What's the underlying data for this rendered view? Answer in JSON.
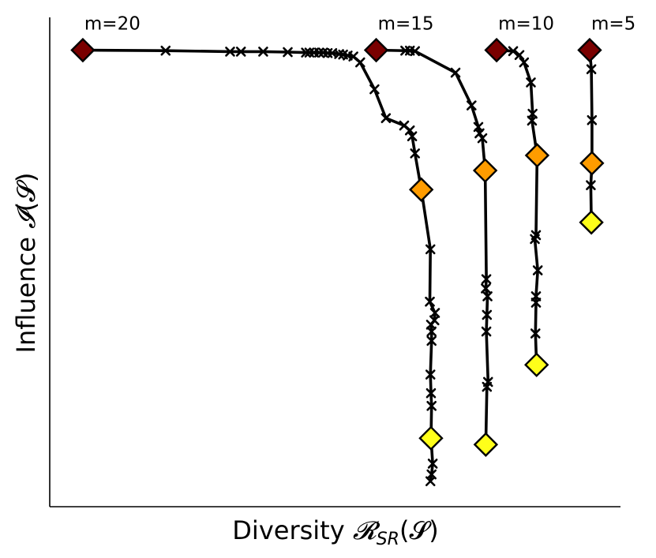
{
  "chart_data": {
    "type": "line",
    "title": "",
    "xlabel": "Diversity 𝓡SR(𝓢)",
    "ylabel": "Influence 𝓘(𝓢)",
    "xlabel_text": {
      "prefix": "Diversity ",
      "symbol": "𝓡",
      "subscript": "SR",
      "suffix": "(𝓢)"
    },
    "ylabel_text": {
      "prefix": "Influence ",
      "symbol": "𝓘",
      "suffix": "(𝓢)"
    },
    "xlim": [
      0,
      100
    ],
    "ylim": [
      0,
      100
    ],
    "grid": false,
    "ticks_shown": false,
    "colors": {
      "start_marker": "#7a0000",
      "mid_marker": "#ff9c00",
      "end_marker": "#ffff1a",
      "line": "#000000"
    },
    "series": [
      {
        "name": "m=20",
        "x": [
          5.8,
          20.3,
          31.6,
          33.5,
          37.4,
          41.7,
          44.9,
          45.5,
          46.3,
          47.2,
          47.9,
          48.7,
          49.5,
          50.7,
          51.4,
          52.2,
          53.2,
          54.4,
          56.9,
          58.9,
          62.1,
          63.1,
          63.5,
          64.0,
          65.1,
          66.7,
          66.6,
          67.5,
          67.4,
          66.8,
          66.9,
          66.9,
          66.7,
          66.8,
          66.9,
          66.8,
          67.1,
          66.9,
          66.7
        ],
        "y": [
          93.3,
          93.2,
          93.0,
          93.0,
          93.0,
          92.9,
          92.8,
          92.8,
          92.8,
          92.8,
          92.8,
          92.7,
          92.7,
          92.5,
          92.4,
          92.2,
          92.0,
          90.8,
          85.3,
          79.4,
          77.9,
          76.9,
          75.7,
          72.2,
          64.8,
          52.6,
          41.9,
          39.6,
          38.1,
          37.2,
          35.8,
          33.9,
          27.0,
          23.2,
          20.6,
          14.0,
          8.8,
          6.6,
          5.2
        ],
        "crosses": [
          1,
          2,
          3,
          4,
          5,
          6,
          7,
          8,
          9,
          10,
          11,
          12,
          13,
          14,
          15,
          16,
          17,
          18,
          19,
          20,
          21,
          22,
          23,
          25,
          26,
          27,
          28,
          29,
          30,
          31,
          32,
          33,
          34,
          36,
          37,
          38
        ],
        "diamonds": [
          {
            "index": 0,
            "color": "#7a0000"
          },
          {
            "index": 24,
            "color": "#ff9c00"
          },
          {
            "index": 35,
            "color": "#ffff1a"
          }
        ]
      },
      {
        "name": "m=15",
        "x": [
          57.2,
          62.3,
          63.1,
          64.0,
          71.1,
          73.9,
          75.1,
          75.3,
          75.8,
          76.3,
          76.5,
          76.4,
          76.7,
          76.6,
          76.5,
          76.8,
          76.6,
          76.4
        ],
        "y": [
          93.3,
          93.2,
          93.2,
          93.1,
          88.7,
          82.0,
          77.6,
          76.3,
          75.3,
          68.7,
          46.5,
          44.6,
          43.0,
          39.2,
          35.8,
          25.5,
          24.5,
          12.7
        ],
        "crosses": [
          1,
          2,
          3,
          4,
          5,
          6,
          7,
          8,
          10,
          11,
          12,
          13,
          14,
          15,
          16
        ],
        "diamonds": [
          {
            "index": 0,
            "color": "#7a0000"
          },
          {
            "index": 9,
            "color": "#ff9c00"
          },
          {
            "index": 17,
            "color": "#ffff1a"
          }
        ]
      },
      {
        "name": "m=10",
        "x": [
          78.3,
          81.2,
          82.3,
          83.1,
          84.3,
          84.6,
          84.5,
          85.4,
          85.2,
          85.0,
          85.5,
          85.2,
          85.2,
          85.1,
          85.3
        ],
        "y": [
          93.3,
          93.1,
          92.3,
          90.8,
          86.7,
          80.3,
          78.9,
          71.8,
          55.5,
          54.7,
          48.3,
          43.0,
          41.7,
          35.4,
          29.0
        ],
        "crosses": [
          1,
          2,
          3,
          4,
          5,
          6,
          8,
          9,
          10,
          11,
          12,
          13
        ],
        "diamonds": [
          {
            "index": 0,
            "color": "#7a0000"
          },
          {
            "index": 7,
            "color": "#ff9c00"
          },
          {
            "index": 14,
            "color": "#ffff1a"
          }
        ]
      },
      {
        "name": "m=5",
        "x": [
          94.6,
          94.9,
          95.0,
          95.0,
          94.8,
          94.9
        ],
        "y": [
          93.3,
          89.4,
          79.0,
          70.2,
          65.7,
          58.1
        ],
        "crosses": [
          1,
          2,
          4
        ],
        "diamonds": [
          {
            "index": 0,
            "color": "#7a0000"
          },
          {
            "index": 3,
            "color": "#ff9c00"
          },
          {
            "index": 5,
            "color": "#ffff1a"
          }
        ]
      }
    ]
  }
}
